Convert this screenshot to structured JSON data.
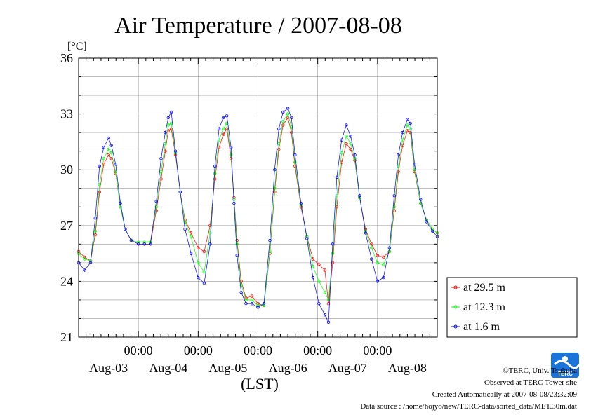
{
  "chart_data": {
    "type": "scatter",
    "title": "Air Temperature / 2007-08-08",
    "ylabel": "[°C]",
    "xlabel": "(LST)",
    "ylim": [
      21,
      36
    ],
    "yticks": [
      21,
      24,
      27,
      30,
      33,
      36
    ],
    "xlim": [
      0,
      6
    ],
    "time_labels": [
      "00:00",
      "00:00",
      "00:00",
      "00:00",
      "00:00"
    ],
    "day_labels": [
      "Aug-03",
      "Aug-04",
      "Aug-05",
      "Aug-06",
      "Aug-07",
      "Aug-08"
    ],
    "grid": true,
    "legend_position": "right",
    "series": [
      {
        "name": "at 29.5 m",
        "color": "#ff0000",
        "points": [
          [
            0.0,
            25.6
          ],
          [
            0.1,
            25.3
          ],
          [
            0.2,
            25.1
          ],
          [
            0.28,
            26.5
          ],
          [
            0.35,
            28.8
          ],
          [
            0.42,
            30.3
          ],
          [
            0.5,
            30.8
          ],
          [
            0.55,
            30.6
          ],
          [
            0.62,
            29.8
          ],
          [
            0.7,
            28.0
          ],
          [
            0.78,
            26.8
          ],
          [
            0.88,
            26.2
          ],
          [
            1.0,
            26.0
          ],
          [
            1.1,
            26.0
          ],
          [
            1.2,
            26.0
          ],
          [
            1.3,
            27.8
          ],
          [
            1.38,
            29.5
          ],
          [
            1.45,
            31.0
          ],
          [
            1.5,
            32.1
          ],
          [
            1.55,
            32.2
          ],
          [
            1.62,
            30.8
          ],
          [
            1.7,
            28.8
          ],
          [
            1.78,
            27.3
          ],
          [
            1.88,
            26.6
          ],
          [
            2.0,
            25.8
          ],
          [
            2.1,
            25.6
          ],
          [
            2.2,
            27.0
          ],
          [
            2.28,
            29.5
          ],
          [
            2.35,
            31.2
          ],
          [
            2.42,
            31.9
          ],
          [
            2.48,
            32.2
          ],
          [
            2.55,
            30.6
          ],
          [
            2.6,
            28.5
          ],
          [
            2.65,
            26.2
          ],
          [
            2.72,
            24.0
          ],
          [
            2.8,
            23.1
          ],
          [
            2.9,
            23.2
          ],
          [
            3.0,
            22.8
          ],
          [
            3.1,
            22.7
          ],
          [
            3.2,
            25.5
          ],
          [
            3.28,
            28.8
          ],
          [
            3.35,
            31.1
          ],
          [
            3.42,
            32.4
          ],
          [
            3.5,
            32.8
          ],
          [
            3.56,
            32.0
          ],
          [
            3.62,
            30.2
          ],
          [
            3.72,
            28.0
          ],
          [
            3.82,
            26.4
          ],
          [
            3.92,
            25.2
          ],
          [
            4.02,
            24.9
          ],
          [
            4.12,
            24.6
          ],
          [
            4.18,
            22.8
          ],
          [
            4.25,
            25.0
          ],
          [
            4.32,
            28.0
          ],
          [
            4.4,
            30.4
          ],
          [
            4.48,
            31.4
          ],
          [
            4.55,
            31.1
          ],
          [
            4.62,
            30.5
          ],
          [
            4.7,
            28.5
          ],
          [
            4.8,
            26.8
          ],
          [
            4.9,
            26.0
          ],
          [
            5.0,
            25.4
          ],
          [
            5.1,
            25.3
          ],
          [
            5.2,
            25.6
          ],
          [
            5.28,
            27.8
          ],
          [
            5.35,
            29.9
          ],
          [
            5.42,
            31.3
          ],
          [
            5.5,
            32.1
          ],
          [
            5.55,
            32.0
          ],
          [
            5.62,
            29.9
          ],
          [
            5.72,
            28.2
          ],
          [
            5.82,
            27.3
          ],
          [
            5.92,
            26.8
          ],
          [
            6.0,
            26.6
          ]
        ]
      },
      {
        "name": "at 12.3 m",
        "color": "#00ff00",
        "points": [
          [
            0.0,
            25.5
          ],
          [
            0.1,
            25.2
          ],
          [
            0.2,
            25.1
          ],
          [
            0.28,
            26.7
          ],
          [
            0.35,
            29.2
          ],
          [
            0.42,
            30.6
          ],
          [
            0.5,
            31.1
          ],
          [
            0.55,
            30.9
          ],
          [
            0.62,
            29.9
          ],
          [
            0.7,
            28.0
          ],
          [
            0.78,
            26.8
          ],
          [
            0.88,
            26.2
          ],
          [
            1.0,
            26.1
          ],
          [
            1.1,
            26.1
          ],
          [
            1.2,
            26.1
          ],
          [
            1.3,
            28.0
          ],
          [
            1.38,
            29.9
          ],
          [
            1.45,
            31.4
          ],
          [
            1.5,
            32.4
          ],
          [
            1.55,
            32.5
          ],
          [
            1.62,
            30.9
          ],
          [
            1.7,
            28.8
          ],
          [
            1.78,
            27.2
          ],
          [
            1.88,
            26.4
          ],
          [
            2.0,
            25.0
          ],
          [
            2.1,
            24.5
          ],
          [
            2.2,
            26.6
          ],
          [
            2.28,
            29.8
          ],
          [
            2.35,
            31.6
          ],
          [
            2.42,
            32.2
          ],
          [
            2.48,
            32.5
          ],
          [
            2.55,
            30.8
          ],
          [
            2.6,
            28.4
          ],
          [
            2.65,
            26.0
          ],
          [
            2.72,
            23.8
          ],
          [
            2.8,
            23.0
          ],
          [
            2.9,
            23.0
          ],
          [
            3.0,
            22.7
          ],
          [
            3.1,
            22.7
          ],
          [
            3.2,
            25.6
          ],
          [
            3.28,
            29.0
          ],
          [
            3.35,
            31.4
          ],
          [
            3.42,
            32.6
          ],
          [
            3.5,
            33.0
          ],
          [
            3.56,
            32.3
          ],
          [
            3.62,
            30.4
          ],
          [
            3.72,
            28.1
          ],
          [
            3.82,
            26.4
          ],
          [
            3.92,
            24.8
          ],
          [
            4.02,
            24.0
          ],
          [
            4.12,
            23.4
          ],
          [
            4.18,
            23.0
          ],
          [
            4.25,
            25.5
          ],
          [
            4.32,
            28.6
          ],
          [
            4.4,
            30.9
          ],
          [
            4.48,
            31.8
          ],
          [
            4.55,
            31.4
          ],
          [
            4.62,
            30.6
          ],
          [
            4.7,
            28.5
          ],
          [
            4.8,
            26.7
          ],
          [
            4.9,
            25.8
          ],
          [
            5.0,
            25.0
          ],
          [
            5.1,
            24.9
          ],
          [
            5.2,
            25.6
          ],
          [
            5.28,
            28.0
          ],
          [
            5.35,
            30.2
          ],
          [
            5.42,
            31.6
          ],
          [
            5.5,
            32.4
          ],
          [
            5.55,
            32.2
          ],
          [
            5.62,
            30.0
          ],
          [
            5.72,
            28.2
          ],
          [
            5.82,
            27.3
          ],
          [
            5.92,
            26.8
          ],
          [
            6.0,
            26.6
          ]
        ]
      },
      {
        "name": "at 1.6 m",
        "color": "#0000ff",
        "points": [
          [
            0.0,
            25.0
          ],
          [
            0.1,
            24.6
          ],
          [
            0.2,
            25.0
          ],
          [
            0.28,
            27.4
          ],
          [
            0.35,
            30.2
          ],
          [
            0.42,
            31.2
          ],
          [
            0.5,
            31.7
          ],
          [
            0.55,
            31.3
          ],
          [
            0.62,
            30.3
          ],
          [
            0.7,
            28.2
          ],
          [
            0.78,
            26.8
          ],
          [
            0.88,
            26.2
          ],
          [
            1.0,
            26.0
          ],
          [
            1.1,
            26.0
          ],
          [
            1.2,
            26.0
          ],
          [
            1.3,
            28.3
          ],
          [
            1.38,
            30.6
          ],
          [
            1.45,
            32.0
          ],
          [
            1.5,
            32.8
          ],
          [
            1.55,
            33.1
          ],
          [
            1.62,
            31.0
          ],
          [
            1.7,
            28.8
          ],
          [
            1.78,
            26.8
          ],
          [
            1.88,
            25.5
          ],
          [
            2.0,
            24.2
          ],
          [
            2.1,
            23.9
          ],
          [
            2.2,
            26.0
          ],
          [
            2.28,
            30.2
          ],
          [
            2.35,
            32.2
          ],
          [
            2.42,
            32.8
          ],
          [
            2.48,
            32.9
          ],
          [
            2.55,
            31.2
          ],
          [
            2.6,
            28.2
          ],
          [
            2.65,
            25.4
          ],
          [
            2.72,
            23.4
          ],
          [
            2.8,
            22.8
          ],
          [
            2.9,
            22.8
          ],
          [
            3.0,
            22.6
          ],
          [
            3.1,
            22.8
          ],
          [
            3.2,
            26.2
          ],
          [
            3.28,
            30.0
          ],
          [
            3.35,
            32.2
          ],
          [
            3.42,
            33.1
          ],
          [
            3.5,
            33.3
          ],
          [
            3.56,
            32.8
          ],
          [
            3.62,
            30.8
          ],
          [
            3.72,
            28.2
          ],
          [
            3.82,
            26.3
          ],
          [
            3.92,
            24.2
          ],
          [
            4.02,
            22.8
          ],
          [
            4.12,
            22.2
          ],
          [
            4.18,
            21.8
          ],
          [
            4.25,
            26.0
          ],
          [
            4.32,
            29.6
          ],
          [
            4.4,
            31.6
          ],
          [
            4.48,
            32.4
          ],
          [
            4.55,
            31.8
          ],
          [
            4.62,
            30.8
          ],
          [
            4.7,
            28.6
          ],
          [
            4.8,
            26.6
          ],
          [
            4.9,
            25.2
          ],
          [
            5.0,
            24.0
          ],
          [
            5.1,
            24.2
          ],
          [
            5.2,
            25.8
          ],
          [
            5.28,
            28.6
          ],
          [
            5.35,
            30.8
          ],
          [
            5.42,
            32.0
          ],
          [
            5.5,
            32.7
          ],
          [
            5.55,
            32.5
          ],
          [
            5.62,
            30.3
          ],
          [
            5.72,
            28.4
          ],
          [
            5.82,
            27.2
          ],
          [
            5.92,
            26.7
          ],
          [
            6.0,
            26.4
          ]
        ]
      }
    ]
  },
  "footer": {
    "line1": "©TERC, Univ. Tsukuba",
    "line2": "Observed at TERC Tower site",
    "line3": "Created Automatically at 2007-08-08/23:32:09",
    "line4": "Data source : /home/hojyo/new/TERC-data/sorted_data/MET.30m.dat",
    "logo_text": "TERC"
  }
}
